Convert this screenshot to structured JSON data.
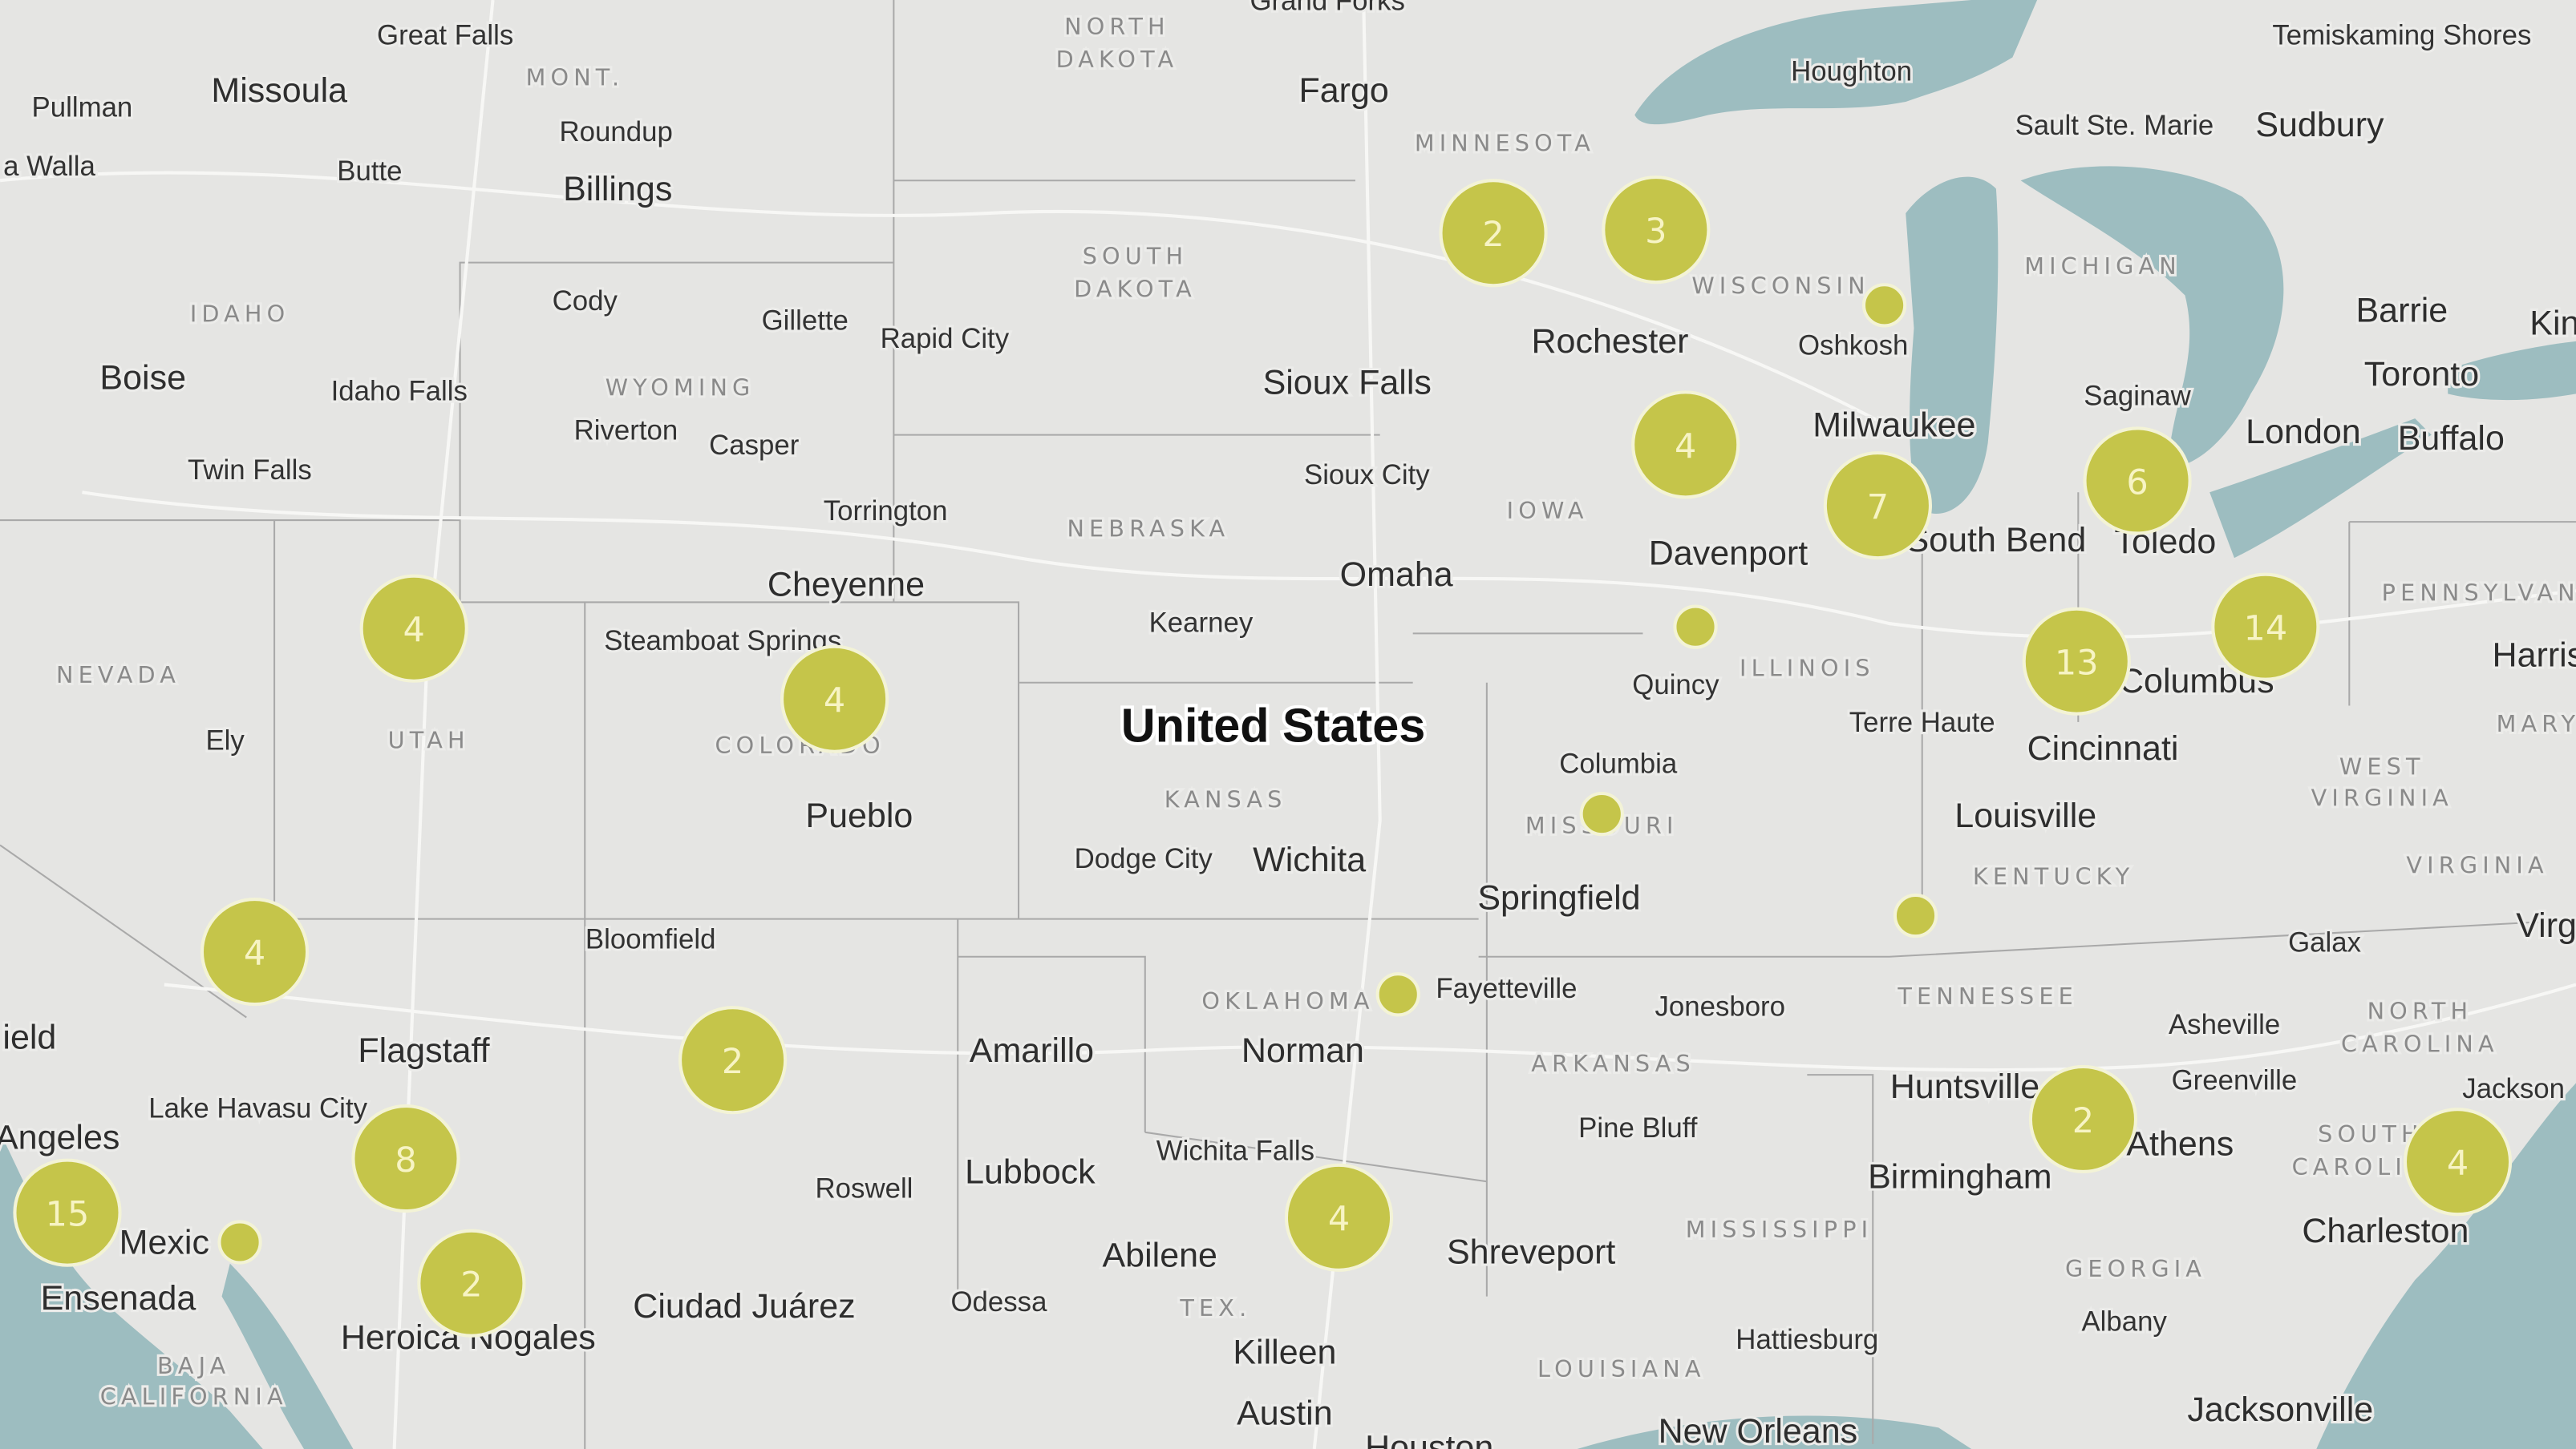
{
  "map": {
    "colors": {
      "land": "#e5e5e3",
      "water": "#9dbdc0",
      "border": "#a9a9a9",
      "road": "#f7f7f5",
      "cluster": "#c5c54a",
      "cluster_stroke": "#f3f3d6",
      "cluster_text": "#f7f4c4"
    },
    "country_label": "United States",
    "labels": [
      {
        "t": "Great Falls",
        "k": "city"
      },
      {
        "t": "Missoula",
        "k": "lg"
      },
      {
        "t": "MONT.",
        "k": "state"
      },
      {
        "t": "Roundup",
        "k": "city"
      },
      {
        "t": "Billings",
        "k": "lg"
      },
      {
        "t": "Pullman",
        "k": "city"
      },
      {
        "t": "a Walla",
        "k": "city"
      },
      {
        "t": "Butte",
        "k": "city"
      },
      {
        "t": "IDAHO",
        "k": "state"
      },
      {
        "t": "Cody",
        "k": "city"
      },
      {
        "t": "Gillette",
        "k": "city"
      },
      {
        "t": "Rapid City",
        "k": "city"
      },
      {
        "t": "Boise",
        "k": "lg"
      },
      {
        "t": "Idaho Falls",
        "k": "city"
      },
      {
        "t": "WYOMING",
        "k": "state"
      },
      {
        "t": "Riverton",
        "k": "city"
      },
      {
        "t": "Casper",
        "k": "city"
      },
      {
        "t": "Twin Falls",
        "k": "city"
      },
      {
        "t": "Torrington",
        "k": "city"
      },
      {
        "t": "Cheyenne",
        "k": "lg"
      },
      {
        "t": "NEBRASKA",
        "k": "state"
      },
      {
        "t": "Kearney",
        "k": "city"
      },
      {
        "t": "Omaha",
        "k": "lg"
      },
      {
        "t": "Sioux City",
        "k": "city"
      },
      {
        "t": "Sioux Falls",
        "k": "lg"
      },
      {
        "t": "SOUTH",
        "k": "state"
      },
      {
        "t": "DAKOTA",
        "k": "state"
      },
      {
        "t": "NORTH",
        "k": "state"
      },
      {
        "t": "DAKOTA",
        "k": "state"
      },
      {
        "t": "Grand Forks",
        "k": "city"
      },
      {
        "t": "Fargo",
        "k": "lg"
      },
      {
        "t": "MINNESOTA",
        "k": "state"
      },
      {
        "t": "Rochester",
        "k": "lg"
      },
      {
        "t": "WISCONSIN",
        "k": "state"
      },
      {
        "t": "Oshkosh",
        "k": "city"
      },
      {
        "t": "Houghton",
        "k": "city"
      },
      {
        "t": "Sault Ste. Marie",
        "k": "city"
      },
      {
        "t": "Sudbury",
        "k": "lg"
      },
      {
        "t": "Temiskaming Shores",
        "k": "city"
      },
      {
        "t": "MICHIGAN",
        "k": "state"
      },
      {
        "t": "Barrie",
        "k": "lg"
      },
      {
        "t": "Kin",
        "k": "lg"
      },
      {
        "t": "Toronto",
        "k": "lg"
      },
      {
        "t": "Saginaw",
        "k": "city"
      },
      {
        "t": "London",
        "k": "lg"
      },
      {
        "t": "Buffalo",
        "k": "lg"
      },
      {
        "t": "Milwaukee",
        "k": "lg"
      },
      {
        "t": "IOWA",
        "k": "state"
      },
      {
        "t": "Davenport",
        "k": "lg"
      },
      {
        "t": "South Bend",
        "k": "lg"
      },
      {
        "t": "Toledo",
        "k": "lg"
      },
      {
        "t": "PENNSYLVAN",
        "k": "state"
      },
      {
        "t": "Harris",
        "k": "lg"
      },
      {
        "t": "Quincy",
        "k": "city"
      },
      {
        "t": "ILLINOIS",
        "k": "state"
      },
      {
        "t": "Columbus",
        "k": "lg"
      },
      {
        "t": "Terre Haute",
        "k": "city"
      },
      {
        "t": "Cincinnati",
        "k": "lg"
      },
      {
        "t": "MARY",
        "k": "state"
      },
      {
        "t": "WEST",
        "k": "state"
      },
      {
        "t": "VIRGINIA",
        "k": "state"
      },
      {
        "t": "Columbia",
        "k": "city"
      },
      {
        "t": "KANSAS",
        "k": "state"
      },
      {
        "t": "NEVADA",
        "k": "state"
      },
      {
        "t": "Ely",
        "k": "city"
      },
      {
        "t": "UTAH",
        "k": "state"
      },
      {
        "t": "Steamboat Springs",
        "k": "city"
      },
      {
        "t": "COLORADO",
        "k": "state"
      },
      {
        "t": "Pueblo",
        "k": "lg"
      },
      {
        "t": "Dodge City",
        "k": "city"
      },
      {
        "t": "Wichita",
        "k": "lg"
      },
      {
        "t": "MISSOURI",
        "k": "state"
      },
      {
        "t": "Louisville",
        "k": "lg"
      },
      {
        "t": "KENTUCKY",
        "k": "state"
      },
      {
        "t": "VIRGINIA",
        "k": "state"
      },
      {
        "t": "Virg",
        "k": "lg"
      },
      {
        "t": "Springfield",
        "k": "lg"
      },
      {
        "t": "Galax",
        "k": "city"
      },
      {
        "t": "TENNESSEE",
        "k": "state"
      },
      {
        "t": "Fayetteville",
        "k": "city"
      },
      {
        "t": "OKLAHOMA",
        "k": "state"
      },
      {
        "t": "Jonesboro",
        "k": "city"
      },
      {
        "t": "Asheville",
        "k": "city"
      },
      {
        "t": "NORTH",
        "k": "state"
      },
      {
        "t": "CAROLINA",
        "k": "state"
      },
      {
        "t": "Bloomfield",
        "k": "city"
      },
      {
        "t": "Flagstaff",
        "k": "lg"
      },
      {
        "t": "Amarillo",
        "k": "lg"
      },
      {
        "t": "Norman",
        "k": "lg"
      },
      {
        "t": "ARKANSAS",
        "k": "state"
      },
      {
        "t": "Huntsville",
        "k": "lg"
      },
      {
        "t": "Greenville",
        "k": "city"
      },
      {
        "t": "Jackson",
        "k": "city"
      },
      {
        "t": "ield",
        "k": "lg"
      },
      {
        "t": "Lake Havasu City",
        "k": "city"
      },
      {
        "t": "Angeles",
        "k": "lg"
      },
      {
        "t": "Pine Bluff",
        "k": "city"
      },
      {
        "t": "Wichita Falls",
        "k": "city"
      },
      {
        "t": "Athens",
        "k": "lg"
      },
      {
        "t": "SOUTH",
        "k": "state"
      },
      {
        "t": "CAROLINA",
        "k": "state"
      },
      {
        "t": "Roswell",
        "k": "city"
      },
      {
        "t": "Lubbock",
        "k": "lg"
      },
      {
        "t": "Birmingham",
        "k": "lg"
      },
      {
        "t": "Charleston",
        "k": "lg"
      },
      {
        "t": "Mexic",
        "k": "lg"
      },
      {
        "t": "MISSISSIPPI",
        "k": "state"
      },
      {
        "t": "Shreveport",
        "k": "lg"
      },
      {
        "t": "Abilene",
        "k": "lg"
      },
      {
        "t": "Ensenada",
        "k": "lg"
      },
      {
        "t": "Ciudad Juárez",
        "k": "lg"
      },
      {
        "t": "Odessa",
        "k": "city"
      },
      {
        "t": "TEX.",
        "k": "state"
      },
      {
        "t": "GEORGIA",
        "k": "state"
      },
      {
        "t": "Albany",
        "k": "city"
      },
      {
        "t": "Heroica Nogales",
        "k": "lg"
      },
      {
        "t": "Hattiesburg",
        "k": "city"
      },
      {
        "t": "Killeen",
        "k": "lg"
      },
      {
        "t": "LOUISIANA",
        "k": "state"
      },
      {
        "t": "BAJA",
        "k": "state"
      },
      {
        "t": "CALIFORNIA",
        "k": "state"
      },
      {
        "t": "Austin",
        "k": "lg"
      },
      {
        "t": "Jacksonville",
        "k": "lg"
      },
      {
        "t": "New Orleans",
        "k": "lg"
      },
      {
        "t": "Houston",
        "k": "lg"
      }
    ],
    "clusters": [
      "2",
      "3",
      "",
      "4",
      "7",
      "6",
      "4",
      "4",
      "",
      "13",
      "14",
      "",
      "4",
      "",
      "",
      "2",
      "2",
      "4",
      "8",
      "15",
      "",
      "4",
      "2"
    ]
  }
}
